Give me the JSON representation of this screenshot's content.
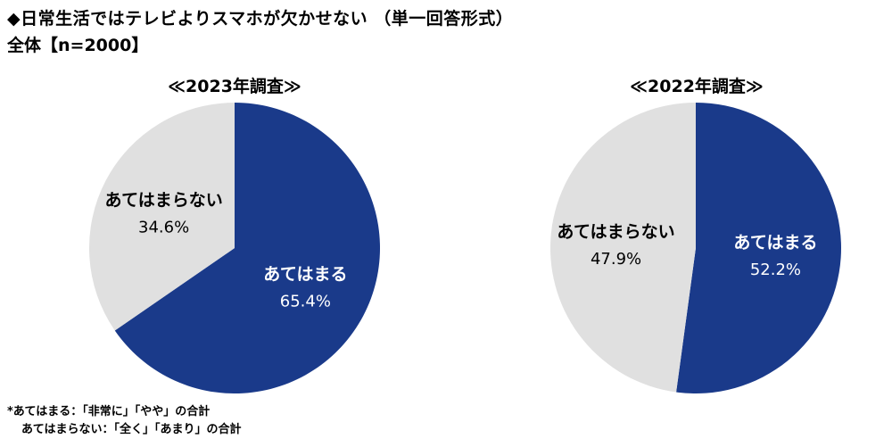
{
  "header": {
    "title": "◆日常生活ではテレビよりスマホが欠かせない （単一回答形式）",
    "subtitle": "全体【n=2000】"
  },
  "footnotes": {
    "line1": "*あてはまる：「非常に」「やや」の合計",
    "line2": "あてはまらない：「全く」「あまり」の合計"
  },
  "colors": {
    "applies": "#1a3a8a",
    "not_applies": "#e0e0e0"
  },
  "chart_data": [
    {
      "type": "pie",
      "title": "≪2023年調査≫",
      "slices": [
        {
          "label": "あてはまる",
          "value": 65.4,
          "value_text": "65.4%",
          "color": "#1a3a8a"
        },
        {
          "label": "あてはまらない",
          "value": 34.6,
          "value_text": "34.6%",
          "color": "#e0e0e0"
        }
      ]
    },
    {
      "type": "pie",
      "title": "≪2022年調査≫",
      "slices": [
        {
          "label": "あてはまる",
          "value": 52.2,
          "value_text": "52.2%",
          "color": "#1a3a8a"
        },
        {
          "label": "あてはまらない",
          "value": 47.9,
          "value_text": "47.9%",
          "color": "#e0e0e0"
        }
      ]
    }
  ]
}
